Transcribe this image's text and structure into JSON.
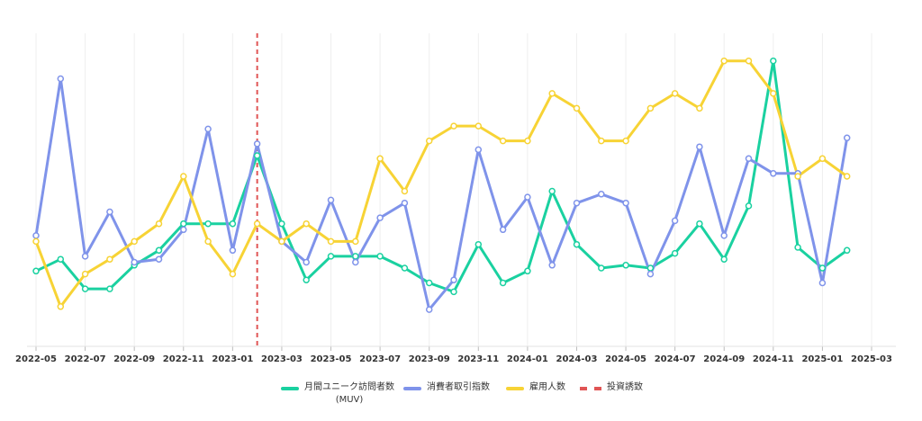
{
  "chart_data": {
    "type": "line",
    "title": "",
    "xlabel": "",
    "ylabel": "",
    "x": [
      "2022-05",
      "2022-06",
      "2022-07",
      "2022-08",
      "2022-09",
      "2022-10",
      "2022-11",
      "2022-12",
      "2023-01",
      "2023-02",
      "2023-03",
      "2023-04",
      "2023-05",
      "2023-06",
      "2023-07",
      "2023-08",
      "2023-09",
      "2023-10",
      "2023-11",
      "2023-12",
      "2024-01",
      "2024-02",
      "2024-03",
      "2024-04",
      "2024-05",
      "2024-06",
      "2024-07",
      "2024-08",
      "2024-09",
      "2024-10",
      "2024-11",
      "2024-12",
      "2025-01",
      "2025-02"
    ],
    "x_ticks": [
      "2022-05",
      "2022-07",
      "2022-09",
      "2022-11",
      "2023-01",
      "2023-03",
      "2023-05",
      "2023-07",
      "2023-09",
      "2023-11",
      "2024-01",
      "2024-03",
      "2024-05",
      "2024-07",
      "2024-09",
      "2024-11",
      "2025-01",
      "2025-03"
    ],
    "x_range": [
      "2022-05",
      "2025-03"
    ],
    "y_range": [
      0,
      100
    ],
    "grid": "vertical",
    "legend_position": "bottom",
    "series": [
      {
        "name": "月間ユニーク訪問者数 (MUV)",
        "name_lines": [
          "月間ユニーク訪問者数",
          "(MUV)"
        ],
        "color": "#1ad1a0",
        "values": [
          23,
          27,
          17,
          17,
          25,
          30,
          39,
          39,
          39,
          62,
          39,
          20,
          28,
          28,
          28,
          24,
          19,
          16,
          32,
          19,
          23,
          50,
          32,
          24,
          25,
          24,
          29,
          39,
          27,
          45,
          94,
          31,
          24,
          30
        ]
      },
      {
        "name": "消費者取引指数",
        "name_lines": [
          "消費者取引指数"
        ],
        "color": "#7f93ea",
        "values": [
          35,
          88,
          28,
          43,
          26,
          27,
          37,
          71,
          30,
          66,
          33,
          26,
          47,
          26,
          41,
          46,
          10,
          20,
          64,
          37,
          48,
          25,
          46,
          49,
          46,
          22,
          40,
          65,
          35,
          61,
          56,
          56,
          19,
          68
        ]
      },
      {
        "name": "雇用人数",
        "name_lines": [
          "雇用人数"
        ],
        "color": "#f7d335",
        "values": [
          33,
          11,
          22,
          27,
          33,
          39,
          55,
          33,
          22,
          39,
          33,
          39,
          33,
          33,
          61,
          50,
          67,
          72,
          72,
          67,
          67,
          83,
          78,
          67,
          67,
          78,
          83,
          78,
          94,
          94,
          83,
          55,
          61,
          55
        ]
      }
    ],
    "annotations": [
      {
        "type": "vline",
        "x": "2023-02",
        "label": "投資誘致",
        "color": "#e05555",
        "style": "dashed"
      }
    ]
  },
  "legend": [
    {
      "key": "muv",
      "label_lines": [
        "月間ユニーク訪問者数",
        "(MUV)"
      ],
      "color": "#1ad1a0",
      "style": "solid"
    },
    {
      "key": "cti",
      "label_lines": [
        "消費者取引指数"
      ],
      "color": "#7f93ea",
      "style": "solid"
    },
    {
      "key": "emp",
      "label_lines": [
        "雇用人数"
      ],
      "color": "#f7d335",
      "style": "solid"
    },
    {
      "key": "inv",
      "label_lines": [
        "投資誘致"
      ],
      "color": "#e05555",
      "style": "dashed"
    }
  ]
}
